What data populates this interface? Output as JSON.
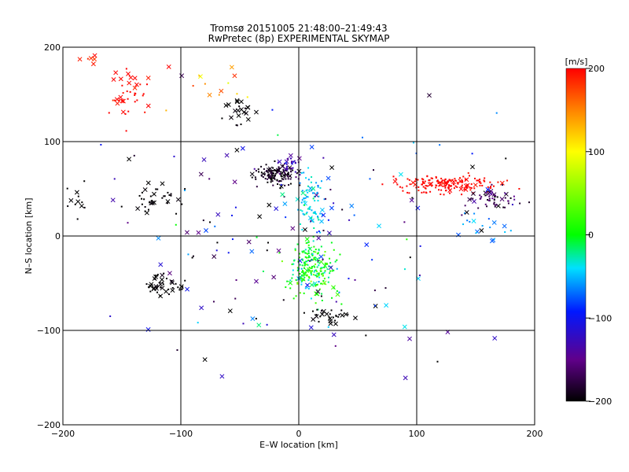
{
  "chart_data": {
    "type": "scatter",
    "title": "Tromsø 20151005 21:48:00–21:49:43",
    "subtitle": "RwPretec (8p) EXPERIMENTAL SKYMAP",
    "xlabel": "E–W location [km]",
    "ylabel": "N–S location [km]",
    "xlim": [
      -200,
      200
    ],
    "ylim": [
      -200,
      200
    ],
    "x_ticks": [
      -200,
      -100,
      0,
      100,
      200
    ],
    "y_ticks": [
      -200,
      -100,
      0,
      100,
      200
    ],
    "x_tick_labels": [
      "−200",
      "−100",
      "0",
      "100",
      "200"
    ],
    "y_tick_labels": [
      "−200",
      "−100",
      "0",
      "100",
      "200"
    ],
    "grid": true,
    "colorbar": {
      "label": "[m/s]",
      "range": [
        -200,
        200
      ],
      "ticks": [
        200,
        100,
        0,
        -100,
        -200
      ],
      "tick_labels": [
        "200",
        "100",
        "0",
        "−100",
        "−200"
      ],
      "scale": "black-purple-blue-cyan-green-yellow-orange-red"
    },
    "markers": {
      "cross": "×",
      "dot": "·"
    },
    "clusters": [
      {
        "x": -145,
        "y": 150,
        "sx": 12,
        "sy": 22,
        "n": 40,
        "v": 200,
        "vs": 10,
        "cross": 0.35
      },
      {
        "x": -175,
        "y": 185,
        "sx": 10,
        "sy": 6,
        "n": 6,
        "v": 195,
        "vs": 8,
        "cross": 0.7
      },
      {
        "x": -20,
        "y": 65,
        "sx": 12,
        "sy": 8,
        "n": 130,
        "v": -190,
        "vs": 15,
        "cross": 0.1
      },
      {
        "x": -5,
        "y": 75,
        "sx": 8,
        "sy": 8,
        "n": 30,
        "v": -130,
        "vs": 20,
        "cross": 0.15
      },
      {
        "x": 10,
        "y": 35,
        "sx": 8,
        "sy": 20,
        "n": 80,
        "v": -40,
        "vs": 20,
        "cross": 0.1
      },
      {
        "x": 12,
        "y": -35,
        "sx": 14,
        "sy": 20,
        "n": 230,
        "v": 0,
        "vs": 35,
        "cross": 0.1
      },
      {
        "x": 125,
        "y": 55,
        "sx": 32,
        "sy": 7,
        "n": 170,
        "v": 200,
        "vs": 8,
        "cross": 0.08
      },
      {
        "x": 165,
        "y": 40,
        "sx": 15,
        "sy": 8,
        "n": 60,
        "v": -170,
        "vs": 25,
        "cross": 0.15
      },
      {
        "x": 160,
        "y": 10,
        "sx": 14,
        "sy": 14,
        "n": 18,
        "v": -60,
        "vs": 15,
        "cross": 0.5
      },
      {
        "x": -120,
        "y": 40,
        "sx": 20,
        "sy": 12,
        "n": 35,
        "v": -200,
        "vs": 5,
        "cross": 0.3
      },
      {
        "x": -188,
        "y": 38,
        "sx": 8,
        "sy": 12,
        "n": 12,
        "v": -200,
        "vs": 5,
        "cross": 0.3
      },
      {
        "x": -115,
        "y": -52,
        "sx": 14,
        "sy": 7,
        "n": 45,
        "v": -200,
        "vs": 5,
        "cross": 0.3
      },
      {
        "x": -50,
        "y": 130,
        "sx": 12,
        "sy": 12,
        "n": 22,
        "v": -200,
        "vs": 5,
        "cross": 0.55
      },
      {
        "x": 25,
        "y": -85,
        "sx": 14,
        "sy": 5,
        "n": 28,
        "v": -200,
        "vs": 5,
        "cross": 0.45
      },
      {
        "x": -80,
        "y": 165,
        "sx": 25,
        "sy": 20,
        "n": 14,
        "v": 150,
        "vs": 50,
        "cross": 0.5
      },
      {
        "x": 0,
        "y": 0,
        "sx": 110,
        "sy": 95,
        "n": 170,
        "v": -120,
        "vs": 100,
        "cross": 0.4
      }
    ]
  }
}
